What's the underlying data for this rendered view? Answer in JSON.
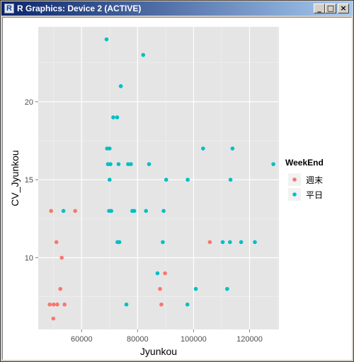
{
  "window": {
    "icon_letter": "R",
    "title": "R Graphics: Device 2 (ACTIVE)",
    "buttons": {
      "minimize": "_",
      "maximize": "□",
      "close": "×"
    }
  },
  "colors": {
    "panel_bg": "#e5e5e5",
    "grid_major": "#ffffff",
    "grid_minor": "#f2f2f2",
    "weekend": "#f8766d",
    "weekday": "#00bfc4"
  },
  "chart_data": {
    "type": "scatter",
    "xlabel": "Jyunkou",
    "ylabel": "CV_Jyunkou",
    "xlim": [
      44500,
      130500
    ],
    "ylim": [
      5.4,
      24.8
    ],
    "x_ticks": [
      60000,
      80000,
      100000,
      120000
    ],
    "x_tick_labels": [
      "60000",
      "80000",
      "100000",
      "120000"
    ],
    "y_ticks": [
      10,
      15,
      20
    ],
    "y_tick_labels": [
      "10",
      "15",
      "20"
    ],
    "grid": true,
    "legend": {
      "title": "WeekEnd",
      "placement": "right",
      "entries": [
        {
          "label": "週末",
          "color": "#f8766d"
        },
        {
          "label": "平日",
          "color": "#00bfc4"
        }
      ]
    },
    "series": [
      {
        "name": "週末",
        "color": "#f8766d",
        "points": [
          [
            48600,
            7
          ],
          [
            49900,
            6.1
          ],
          [
            50000,
            7
          ],
          [
            51300,
            7
          ],
          [
            53900,
            7
          ],
          [
            52400,
            8
          ],
          [
            52900,
            10
          ],
          [
            51000,
            11
          ],
          [
            49100,
            13
          ],
          [
            57700,
            13
          ],
          [
            88000,
            8
          ],
          [
            88500,
            7
          ],
          [
            89800,
            9
          ],
          [
            105800,
            11
          ]
        ]
      },
      {
        "name": "平日",
        "color": "#00bfc4",
        "points": [
          [
            68900,
            24
          ],
          [
            82000,
            23
          ],
          [
            74000,
            21
          ],
          [
            71300,
            19
          ],
          [
            72700,
            19
          ],
          [
            69100,
            17
          ],
          [
            70000,
            17
          ],
          [
            69400,
            16
          ],
          [
            70300,
            16
          ],
          [
            73200,
            16
          ],
          [
            76600,
            16
          ],
          [
            77600,
            16
          ],
          [
            84100,
            16
          ],
          [
            70000,
            15
          ],
          [
            90200,
            15
          ],
          [
            97900,
            15
          ],
          [
            103400,
            17
          ],
          [
            113900,
            17
          ],
          [
            113200,
            15
          ],
          [
            128500,
            16
          ],
          [
            53500,
            13
          ],
          [
            69800,
            13
          ],
          [
            70600,
            13
          ],
          [
            78100,
            13
          ],
          [
            78800,
            13
          ],
          [
            83000,
            13
          ],
          [
            89300,
            13
          ],
          [
            72800,
            11
          ],
          [
            73500,
            11
          ],
          [
            89000,
            11
          ],
          [
            110400,
            11
          ],
          [
            113000,
            11
          ],
          [
            117000,
            11
          ],
          [
            121900,
            11
          ],
          [
            87100,
            9
          ],
          [
            100800,
            8
          ],
          [
            112000,
            8
          ],
          [
            76000,
            7
          ],
          [
            97800,
            7
          ]
        ]
      }
    ]
  }
}
